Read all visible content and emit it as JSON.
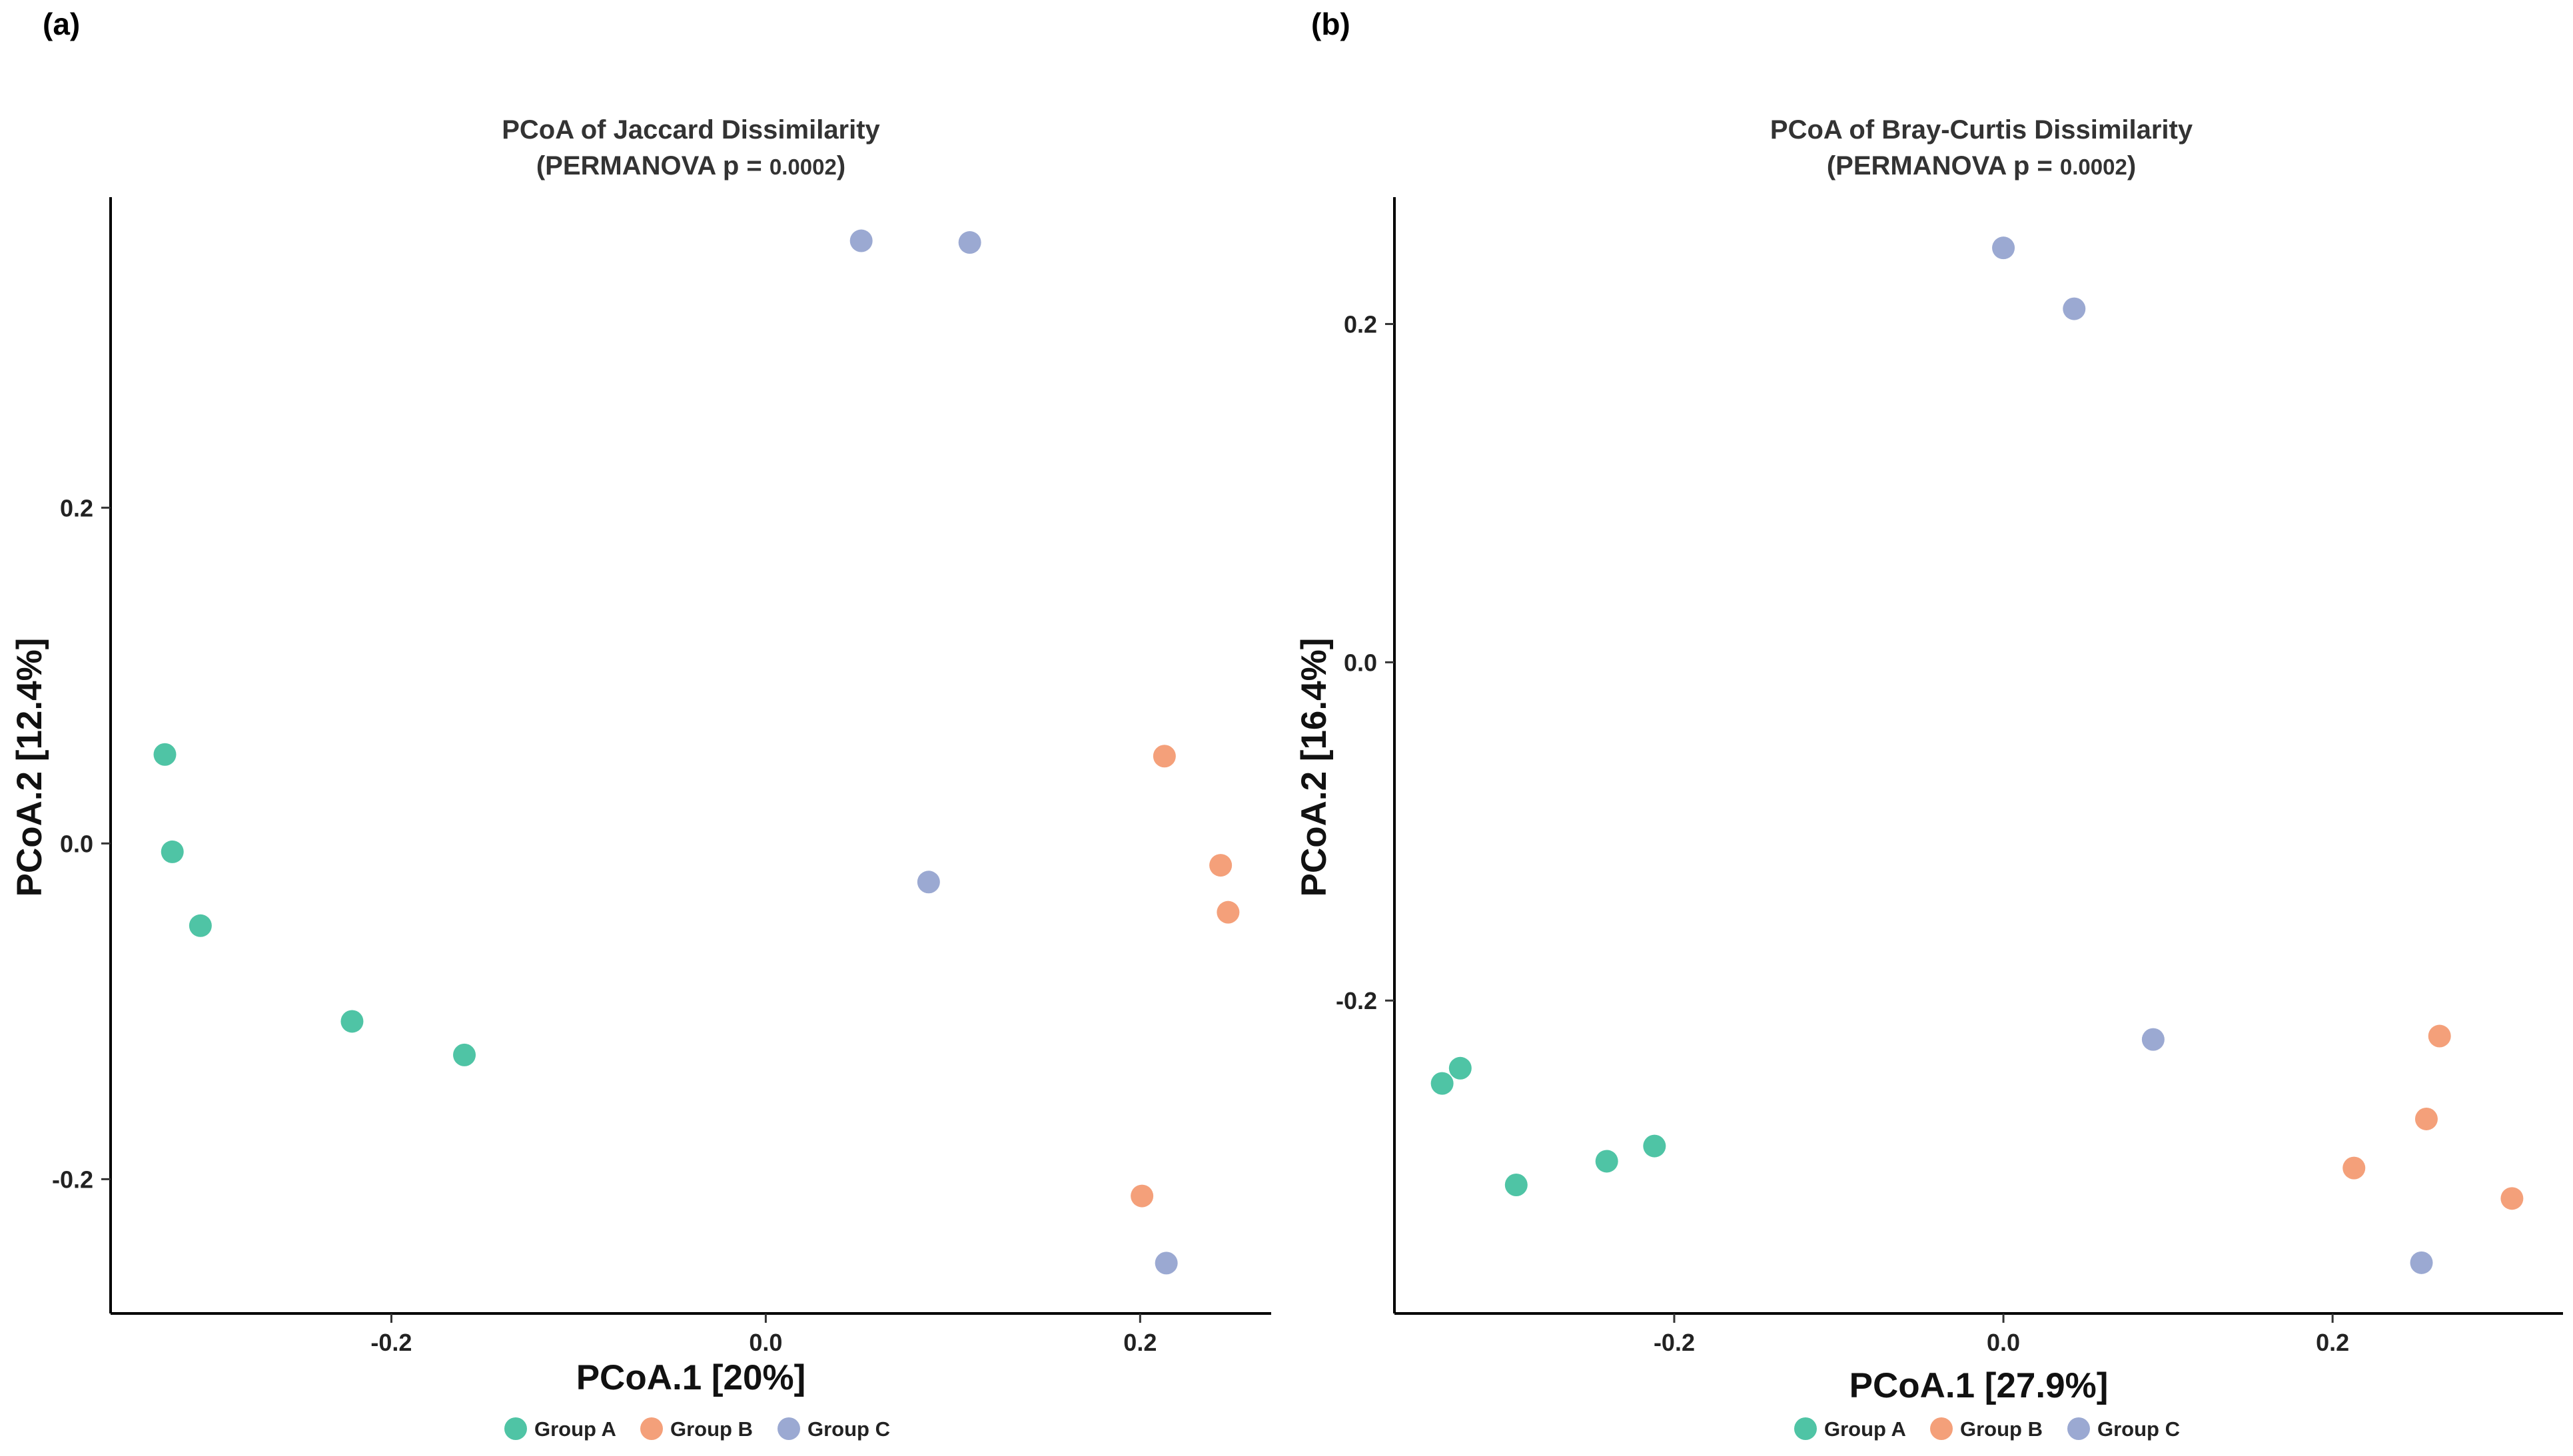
{
  "chart_data": [
    {
      "panel": "(a)",
      "type": "scatter",
      "title": "PCoA of Jaccard Dissimilarity",
      "subtitle_prefix": "(PERMANOVA p = ",
      "p_value": "0.0002",
      "subtitle_suffix": ")",
      "xlabel": "PCoA.1 [20%]",
      "ylabel": "PCoA.2 [12.4%]",
      "xlim": [
        -0.35,
        0.27
      ],
      "ylim": [
        -0.28,
        0.385
      ],
      "xticks": [
        -0.2,
        0.0,
        0.2
      ],
      "xtick_labels": [
        "-0.2",
        "0.0",
        "0.2"
      ],
      "yticks": [
        -0.2,
        0.0,
        0.2
      ],
      "ytick_labels": [
        "-0.2",
        "0.0",
        "0.2"
      ],
      "legend_position": "bottom",
      "series": [
        {
          "name": "Group A",
          "color": "#4fc4a5",
          "points": [
            {
              "x": -0.321,
              "y": 0.053
            },
            {
              "x": -0.317,
              "y": -0.005
            },
            {
              "x": -0.302,
              "y": -0.049
            },
            {
              "x": -0.221,
              "y": -0.106
            },
            {
              "x": -0.161,
              "y": -0.126
            }
          ]
        },
        {
          "name": "Group B",
          "color": "#f4a07a",
          "points": [
            {
              "x": 0.213,
              "y": 0.052
            },
            {
              "x": 0.243,
              "y": -0.013
            },
            {
              "x": 0.247,
              "y": -0.041
            },
            {
              "x": 0.201,
              "y": -0.21
            }
          ]
        },
        {
          "name": "Group C",
          "color": "#9ba9d2",
          "points": [
            {
              "x": 0.051,
              "y": 0.359
            },
            {
              "x": 0.109,
              "y": 0.358
            },
            {
              "x": 0.087,
              "y": -0.023
            },
            {
              "x": 0.214,
              "y": -0.25
            }
          ]
        }
      ]
    },
    {
      "panel": "(b)",
      "type": "scatter",
      "title": "PCoA of Bray-Curtis Dissimilarity",
      "subtitle_prefix": "(PERMANOVA p = ",
      "p_value": "0.0002",
      "subtitle_suffix": ")",
      "xlabel": "PCoA.1 [27.9%]",
      "ylabel": "PCoA.2 [16.4%]",
      "xlim": [
        -0.37,
        0.34
      ],
      "ylim": [
        -0.385,
        0.275
      ],
      "xticks": [
        -0.2,
        0.0,
        0.2
      ],
      "xtick_labels": [
        "-0.2",
        "0.0",
        "0.2"
      ],
      "yticks": [
        -0.2,
        0.0,
        0.2
      ],
      "ytick_labels": [
        "-0.2",
        "0.0",
        "0.2"
      ],
      "legend_position": "bottom",
      "series": [
        {
          "name": "Group A",
          "color": "#4fc4a5",
          "points": [
            {
              "x": -0.341,
              "y": -0.249
            },
            {
              "x": -0.33,
              "y": -0.24
            },
            {
              "x": -0.296,
              "y": -0.309
            },
            {
              "x": -0.241,
              "y": -0.295
            },
            {
              "x": -0.212,
              "y": -0.286
            }
          ]
        },
        {
          "name": "Group B",
          "color": "#f4a07a",
          "points": [
            {
              "x": 0.265,
              "y": -0.221
            },
            {
              "x": 0.257,
              "y": -0.27
            },
            {
              "x": 0.213,
              "y": -0.299
            },
            {
              "x": 0.309,
              "y": -0.317
            }
          ]
        },
        {
          "name": "Group C",
          "color": "#9ba9d2",
          "points": [
            {
              "x": 0.0,
              "y": 0.245
            },
            {
              "x": 0.043,
              "y": 0.209
            },
            {
              "x": 0.091,
              "y": -0.223
            },
            {
              "x": 0.254,
              "y": -0.355
            }
          ]
        }
      ]
    }
  ]
}
